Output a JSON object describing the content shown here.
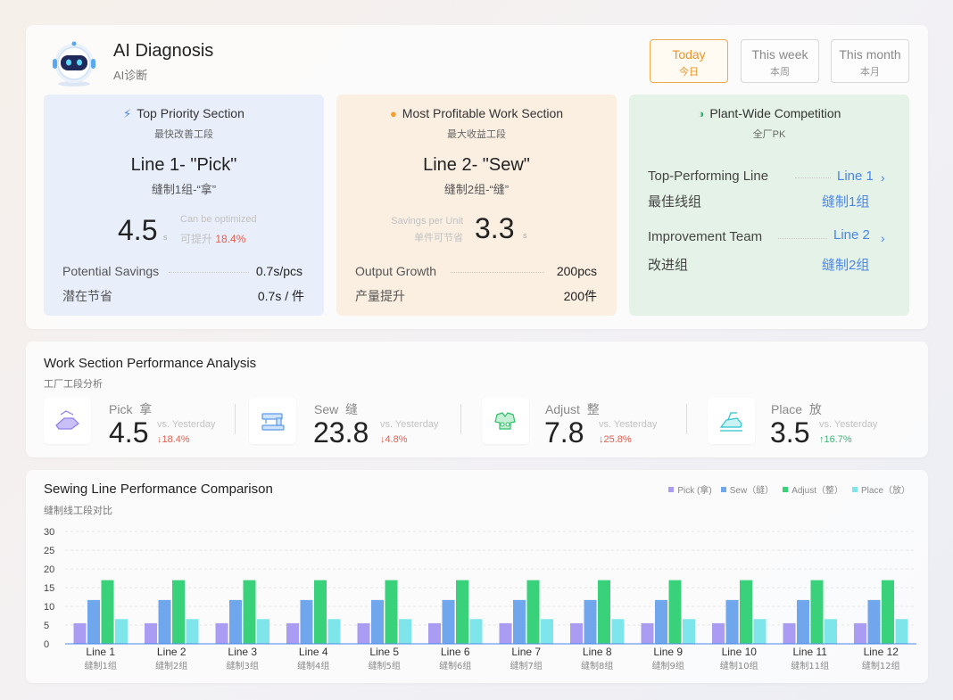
{
  "header": {
    "title": "AI Diagnosis",
    "subtitle": "AI诊断",
    "periods": [
      {
        "en": "Today",
        "zh": "今日",
        "active": true
      },
      {
        "en": "This week",
        "zh": "本周",
        "active": false
      },
      {
        "en": "This month",
        "zh": "本月",
        "active": false
      }
    ]
  },
  "priority": {
    "title": "Top Priority Section",
    "title_zh": "最快改善工段",
    "line": "Line 1- \"Pick\"",
    "line_zh": "缝制1组-“拿”",
    "value": "4.5",
    "unit": "s",
    "opt_label": "Can be optimized",
    "opt_label_zh": "可提升",
    "opt_pct": "18.4%",
    "savings_label": "Potential Savings",
    "savings_value": "0.7s/pcs",
    "savings_label_zh": "潜在节省",
    "savings_value_zh": "0.7s / 件"
  },
  "profit": {
    "title": "Most Profitable Work Section",
    "title_zh": "最大收益工段",
    "line": "Line 2- \"Sew\"",
    "line_zh": "缝制2组-“缝”",
    "unit_label": "Savings per Unit",
    "unit_label_zh": "单件可节省",
    "value": "3.3",
    "unit": "s",
    "growth_label": "Output Growth",
    "growth_value": "200pcs",
    "growth_label_zh": "产量提升",
    "growth_value_zh": "200件"
  },
  "competition": {
    "title": "Plant-Wide Competition",
    "title_zh": "全厂PK",
    "top_label": "Top-Performing Line",
    "top_link": "Line 1",
    "top_label_zh": "最佳线组",
    "top_link_zh": "缝制1组",
    "imp_label": "Improvement Team",
    "imp_link": "Line 2",
    "imp_label_zh": "改进组",
    "imp_link_zh": "缝制2组"
  },
  "analysis": {
    "title": "Work Section Performance Analysis",
    "subtitle": "工厂工段分析",
    "vs_label": "vs. Yesterday",
    "stats": [
      {
        "name": "Pick",
        "name_zh": "拿",
        "value": "4.5",
        "change": "↓18.4%",
        "dir": "down",
        "icon": "pick-icon"
      },
      {
        "name": "Sew",
        "name_zh": "缝",
        "value": "23.8",
        "change": "↓4.8%",
        "dir": "down",
        "icon": "sewing-machine-icon"
      },
      {
        "name": "Adjust",
        "name_zh": "整",
        "value": "7.8",
        "change": "↓25.8%",
        "dir": "down",
        "icon": "adjust-icon"
      },
      {
        "name": "Place",
        "name_zh": "放",
        "value": "3.5",
        "change": "↑16.7%",
        "dir": "up",
        "icon": "iron-icon"
      }
    ]
  },
  "colors": {
    "pick": "#a99cf2",
    "sew": "#6fa6ec",
    "adjust": "#39d17a",
    "place": "#7ee6ea",
    "accent": "#4a86e8",
    "down": "#e35d4c",
    "up": "#3cb371"
  },
  "chart_data": {
    "type": "bar",
    "title": "Sewing Line Performance Comparison",
    "subtitle": "缝制线工段对比",
    "legend_position": "top-right",
    "grid": true,
    "ylim": [
      0,
      30
    ],
    "yticks": [
      0,
      5,
      10,
      15,
      20,
      25,
      30
    ],
    "categories": [
      "Line 1",
      "Line 2",
      "Line 3",
      "Line 4",
      "Line 5",
      "Line 6",
      "Line 7",
      "Line 8",
      "Line 9",
      "Line 10",
      "Line 11",
      "Line 12"
    ],
    "categories_zh": [
      "缝制1组",
      "缝制2组",
      "缝制3组",
      "缝制4组",
      "缝制5组",
      "缝制6组",
      "缝制7组",
      "缝制8组",
      "缝制9组",
      "缝制10组",
      "缝制11组",
      "缝制12组"
    ],
    "series": [
      {
        "name": "Pick (拿)",
        "key": "pick",
        "values": [
          5.5,
          5.5,
          5.5,
          5.5,
          5.5,
          5.5,
          5.5,
          5.5,
          5.5,
          5.5,
          5.5,
          5.5
        ]
      },
      {
        "name": "Sew（缝）",
        "key": "sew",
        "values": [
          11.7,
          11.7,
          11.7,
          11.7,
          11.7,
          11.7,
          11.7,
          11.7,
          11.7,
          11.7,
          11.7,
          11.7
        ]
      },
      {
        "name": "Adjust（整）",
        "key": "adjust",
        "values": [
          17,
          17,
          17,
          17,
          17,
          17,
          17,
          17,
          17,
          17,
          17,
          17
        ]
      },
      {
        "name": "Place（放）",
        "key": "place",
        "values": [
          6.6,
          6.6,
          6.6,
          6.6,
          6.6,
          6.6,
          6.6,
          6.6,
          6.6,
          6.6,
          6.6,
          6.6
        ]
      }
    ]
  }
}
